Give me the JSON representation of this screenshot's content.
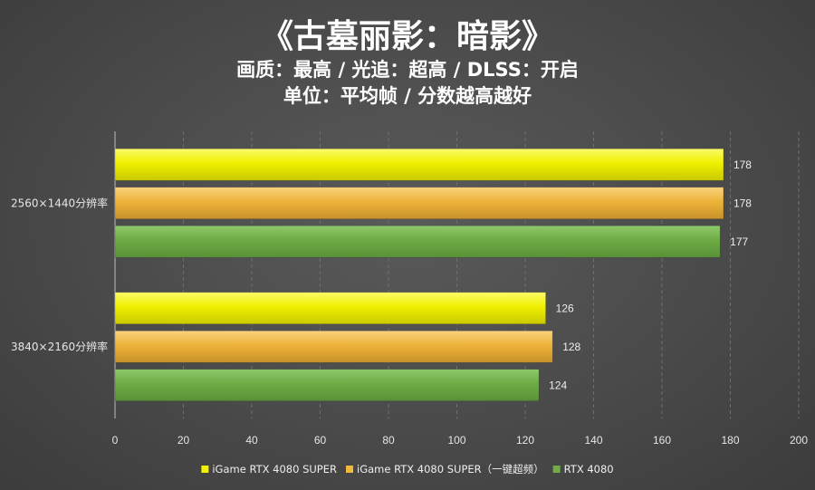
{
  "title": "《古墓丽影：暗影》",
  "subtitle1": "画质：最高 / 光追：超高 / DLSS：开启",
  "subtitle2": "单位：平均帧 / 分数越高越好",
  "chart_data": {
    "type": "bar",
    "orientation": "horizontal",
    "categories": [
      "2560×1440分辨率",
      "3840×2160分辨率"
    ],
    "series": [
      {
        "name": "iGame RTX 4080 SUPER",
        "values": [
          178,
          126
        ],
        "color": "#f2f200"
      },
      {
        "name": "iGame RTX 4080 SUPER（一键超频）",
        "values": [
          178,
          128
        ],
        "color": "#f0b93c"
      },
      {
        "name": "RTX 4080",
        "values": [
          177,
          124
        ],
        "color": "#70ad47"
      }
    ],
    "xlim": [
      0,
      200
    ],
    "xticks": [
      0,
      20,
      40,
      60,
      80,
      100,
      120,
      140,
      160,
      180,
      200
    ],
    "grid": "vertical",
    "legend_position": "bottom",
    "data_labels": true
  }
}
